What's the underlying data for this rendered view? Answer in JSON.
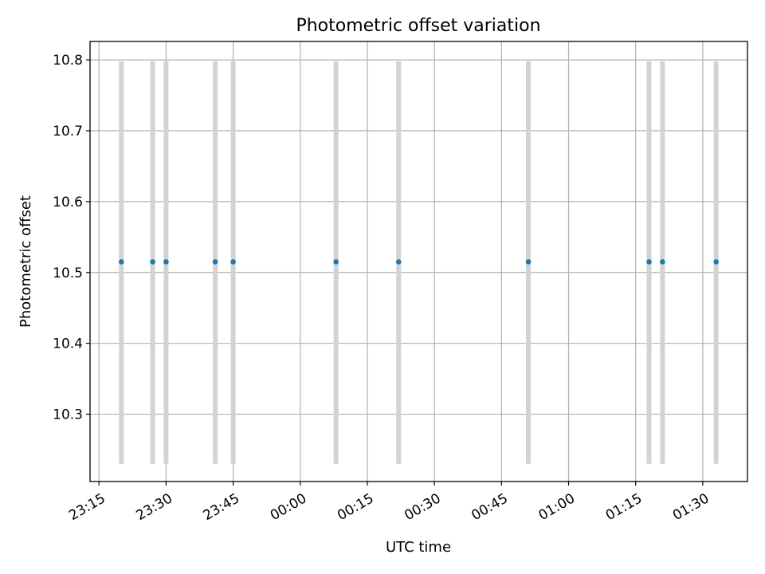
{
  "chart_data": {
    "type": "scatter",
    "title": "Photometric offset variation",
    "xlabel": "UTC time",
    "ylabel": "Photometric offset",
    "grid": true,
    "x_ticks": [
      "23:15",
      "23:30",
      "23:45",
      "00:00",
      "00:15",
      "00:30",
      "00:45",
      "01:00",
      "01:15",
      "01:30"
    ],
    "y_ticks": [
      "10.3",
      "10.4",
      "10.5",
      "10.6",
      "10.7",
      "10.8"
    ],
    "xlim": [
      "23:13",
      "01:40"
    ],
    "ylim": [
      10.205,
      10.826
    ],
    "error_color": "#d3d3d3",
    "point_color": "#1f77b4",
    "points": [
      {
        "x": "23:20",
        "y": 10.515,
        "ylow": 10.23,
        "yhigh": 10.798
      },
      {
        "x": "23:27",
        "y": 10.515,
        "ylow": 10.23,
        "yhigh": 10.798
      },
      {
        "x": "23:30",
        "y": 10.515,
        "ylow": 10.23,
        "yhigh": 10.798
      },
      {
        "x": "23:41",
        "y": 10.515,
        "ylow": 10.23,
        "yhigh": 10.798
      },
      {
        "x": "23:45",
        "y": 10.515,
        "ylow": 10.23,
        "yhigh": 10.798
      },
      {
        "x": "00:08",
        "y": 10.515,
        "ylow": 10.23,
        "yhigh": 10.798
      },
      {
        "x": "00:22",
        "y": 10.515,
        "ylow": 10.23,
        "yhigh": 10.798
      },
      {
        "x": "00:51",
        "y": 10.515,
        "ylow": 10.23,
        "yhigh": 10.798
      },
      {
        "x": "01:18",
        "y": 10.515,
        "ylow": 10.23,
        "yhigh": 10.798
      },
      {
        "x": "01:21",
        "y": 10.515,
        "ylow": 10.23,
        "yhigh": 10.798
      },
      {
        "x": "01:33",
        "y": 10.515,
        "ylow": 10.23,
        "yhigh": 10.798
      }
    ]
  }
}
